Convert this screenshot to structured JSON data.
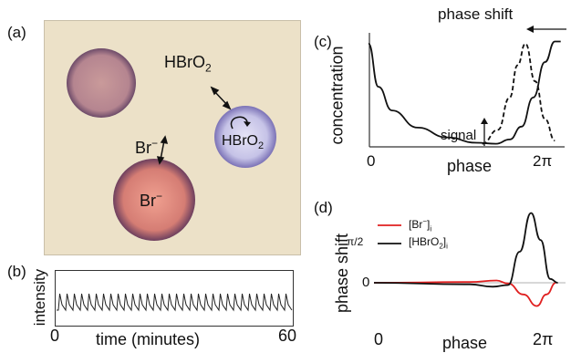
{
  "panels": {
    "a": {
      "label": "(a)",
      "species": {
        "hbro2": "HBrO",
        "hbro2_sub": "2",
        "br": "Br",
        "minus": "−"
      }
    },
    "b": {
      "label": "(b)",
      "ylabel": "intensity",
      "xlabel": "time (minutes)",
      "x_min_label": "0",
      "x_max_label": "60"
    },
    "c": {
      "label": "(c)",
      "ylabel": "concentration",
      "xlabel": "phase",
      "x_min_label": "0",
      "x_max_label": "2π",
      "annotation_top": "phase shift",
      "annotation_signal": "signal"
    },
    "d": {
      "label": "(d)",
      "ylabel": "phase shift",
      "xlabel": "phase",
      "x_min_label": "0",
      "x_max_label": "2π",
      "ytick_top": "π/2",
      "ytick_zero": "0",
      "legend": [
        {
          "label": "[Br",
          "sup": "−",
          "sub": "]",
          "idx": "i",
          "color": "#e02020"
        },
        {
          "label": "[HBrO",
          "sub": "2",
          "tail": "]",
          "idx": "i",
          "color": "#111111"
        }
      ]
    }
  },
  "chart_data": [
    {
      "type": "line",
      "panel": "b",
      "xlabel": "time (minutes)",
      "ylabel": "intensity",
      "xlim": [
        0,
        60
      ],
      "series": [
        {
          "peaks_count": 32
        }
      ]
    },
    {
      "type": "line",
      "panel": "c",
      "xlabel": "phase",
      "ylabel": "concentration",
      "x_ticks": [
        "0",
        "2π"
      ],
      "series": [
        {
          "style": "solid",
          "points": [
            [
              0,
              0.95
            ],
            [
              0.05,
              0.55
            ],
            [
              0.12,
              0.33
            ],
            [
              0.25,
              0.17
            ],
            [
              0.4,
              0.08
            ],
            [
              0.55,
              0.03
            ],
            [
              0.65,
              0.02
            ],
            [
              0.72,
              0.06
            ],
            [
              0.78,
              0.18
            ],
            [
              0.84,
              0.45
            ],
            [
              0.9,
              0.78
            ],
            [
              0.95,
              0.97
            ],
            [
              0.98,
              0.97
            ]
          ]
        },
        {
          "style": "dashed",
          "points": [
            [
              0.58,
              0.02
            ],
            [
              0.66,
              0.15
            ],
            [
              0.72,
              0.45
            ],
            [
              0.76,
              0.75
            ],
            [
              0.8,
              0.95
            ],
            [
              0.85,
              0.6
            ],
            [
              0.9,
              0.25
            ],
            [
              0.95,
              0.05
            ]
          ]
        }
      ]
    },
    {
      "type": "line",
      "panel": "d",
      "xlabel": "phase",
      "ylabel": "phase shift",
      "x_ticks": [
        "0",
        "2π"
      ],
      "y_ticks": [
        "0",
        "π/2"
      ],
      "series": [
        {
          "name": "[Br−]i",
          "color": "#e02020",
          "points": [
            [
              0,
              0
            ],
            [
              0.5,
              0.01
            ],
            [
              0.64,
              0.03
            ],
            [
              0.7,
              -0.01
            ],
            [
              0.78,
              -0.15
            ],
            [
              0.85,
              -0.3
            ],
            [
              0.9,
              -0.15
            ],
            [
              0.95,
              0
            ]
          ]
        },
        {
          "name": "[HBrO2]i",
          "color": "#111111",
          "points": [
            [
              0,
              0
            ],
            [
              0.5,
              -0.02
            ],
            [
              0.62,
              -0.05
            ],
            [
              0.7,
              -0.03
            ],
            [
              0.76,
              0.4
            ],
            [
              0.82,
              0.9
            ],
            [
              0.87,
              0.55
            ],
            [
              0.92,
              0.05
            ],
            [
              0.96,
              0
            ]
          ]
        }
      ]
    }
  ]
}
